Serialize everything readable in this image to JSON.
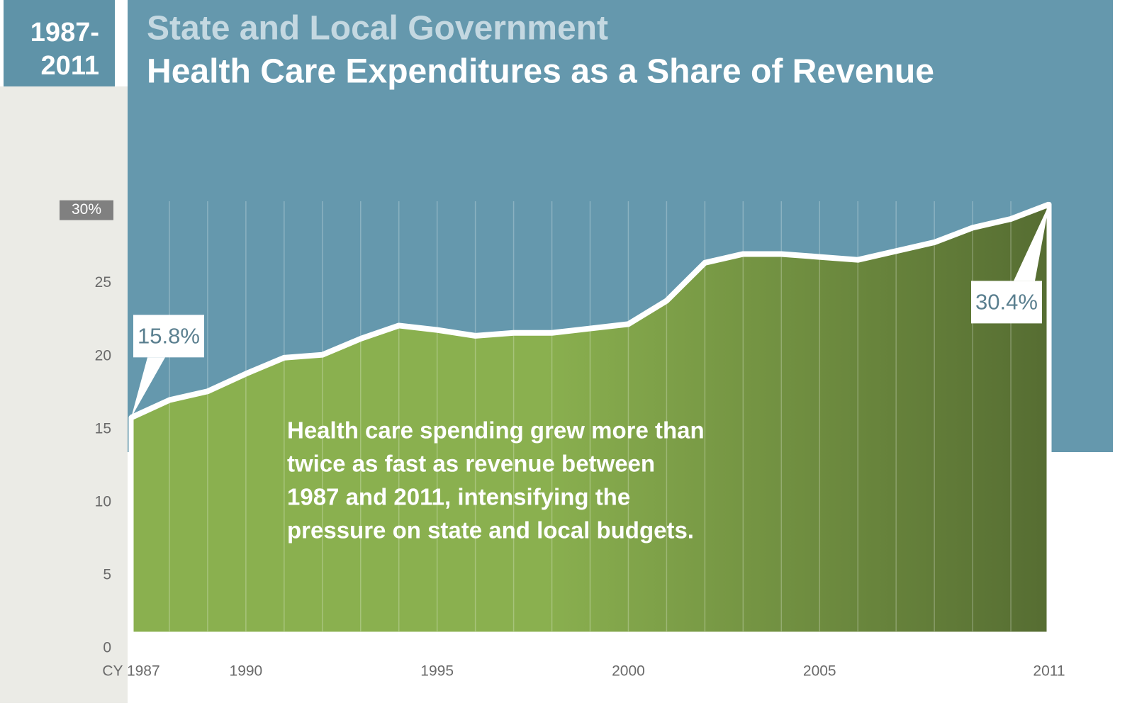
{
  "period": [
    "1987-",
    "2011"
  ],
  "chart_data": {
    "type": "area",
    "title": "State and Local Government",
    "subtitle": "Health Care Expenditures as a Share of Revenue",
    "annotation": [
      "Health care spending grew more than",
      "twice as fast as revenue between",
      "1987 and 2011, intensifying the",
      "pressure on state and local budgets."
    ],
    "x": [
      1987,
      1988,
      1989,
      1990,
      1991,
      1992,
      1993,
      1994,
      1995,
      1996,
      1997,
      1998,
      1999,
      2000,
      2001,
      2002,
      2003,
      2004,
      2005,
      2006,
      2007,
      2008,
      2009,
      2010,
      2011
    ],
    "values": [
      15.8,
      17.0,
      17.6,
      18.8,
      19.9,
      20.1,
      21.2,
      22.1,
      21.8,
      21.4,
      21.6,
      21.6,
      21.9,
      22.2,
      23.8,
      26.4,
      27.0,
      27.0,
      26.8,
      26.6,
      27.2,
      27.8,
      28.8,
      29.4,
      30.4
    ],
    "value_labels": [
      "15.8%",
      null,
      null,
      null,
      null,
      null,
      null,
      null,
      null,
      null,
      null,
      null,
      null,
      null,
      null,
      null,
      null,
      null,
      null,
      null,
      null,
      null,
      null,
      null,
      "30.4%"
    ],
    "color": "#8ab04f",
    "color_dark": "#566d32",
    "xlim": [
      1987,
      2011
    ],
    "xticks": [
      {
        "value": 1987,
        "label": "CY 1987"
      },
      1990,
      1995,
      2000,
      2005,
      2011
    ],
    "ylim": [
      0,
      31
    ],
    "yticks": [
      0,
      5,
      10,
      15,
      20,
      25,
      {
        "value": 30,
        "label": "30%"
      }
    ],
    "grid": true
  }
}
